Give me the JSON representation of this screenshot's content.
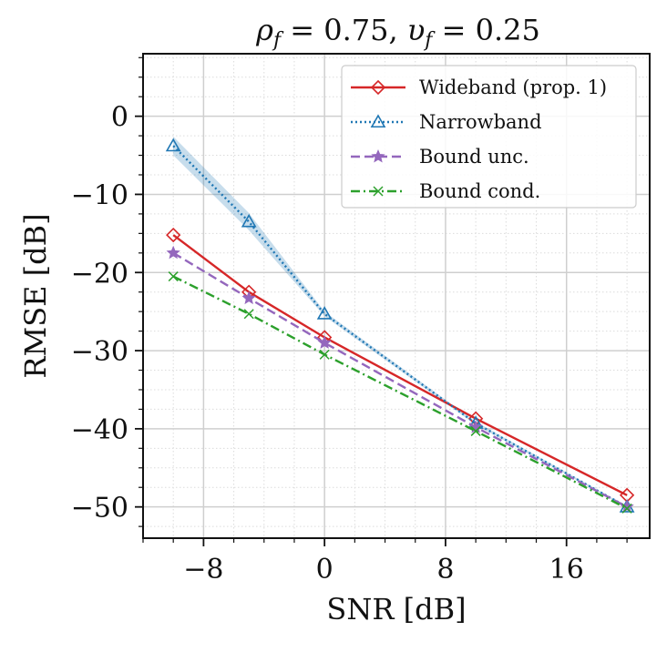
{
  "chart_data": {
    "type": "line",
    "title": "ρ_f = 0.75, υ_f = 0.25",
    "title_parts": {
      "rho": "ρ",
      "rho_sub": "f",
      "rho_val": " = 0.75, ",
      "ups": "υ",
      "ups_sub": "f",
      "ups_val": " = 0.25"
    },
    "xlabel": "SNR [dB]",
    "ylabel": "RMSE [dB]",
    "xlim": [
      -12,
      21.5
    ],
    "ylim": [
      -54,
      8
    ],
    "xticks": [
      -8,
      0,
      8,
      16
    ],
    "xtick_labels": [
      "−8",
      "0",
      "8",
      "16"
    ],
    "yticks": [
      0,
      -10,
      -20,
      -30,
      -40,
      -50
    ],
    "ytick_labels": [
      "0",
      "−10",
      "−20",
      "−30",
      "−40",
      "−50"
    ],
    "grid": true,
    "legend_position": "top-right",
    "x": [
      -10,
      -5,
      0,
      10,
      20
    ],
    "series": [
      {
        "name": "Wideband (prop. 1)",
        "color": "#d62728",
        "dash": "solid",
        "marker": "diamond",
        "values": [
          -15.2,
          -22.5,
          -28.3,
          -38.7,
          -48.5
        ]
      },
      {
        "name": "Narrowband",
        "color": "#1f77b4",
        "dash": "dotted",
        "marker": "triangle",
        "values": [
          -3.8,
          -13.5,
          -25.3,
          -39.3,
          -50.0
        ],
        "band": {
          "lower": [
            -5.0,
            -14.6,
            -25.6,
            -39.5,
            -50.1
          ],
          "upper": [
            -2.6,
            -12.4,
            -25.0,
            -39.1,
            -49.9
          ]
        }
      },
      {
        "name": "Bound unc.",
        "color": "#9467bd",
        "dash": "dashed",
        "marker": "star",
        "values": [
          -17.5,
          -23.3,
          -29.0,
          -39.8,
          -50.0
        ]
      },
      {
        "name": "Bound cond.",
        "color": "#2ca02c",
        "dash": "dashdot",
        "marker": "x",
        "values": [
          -20.5,
          -25.3,
          -30.5,
          -40.3,
          -50.2
        ]
      }
    ]
  }
}
